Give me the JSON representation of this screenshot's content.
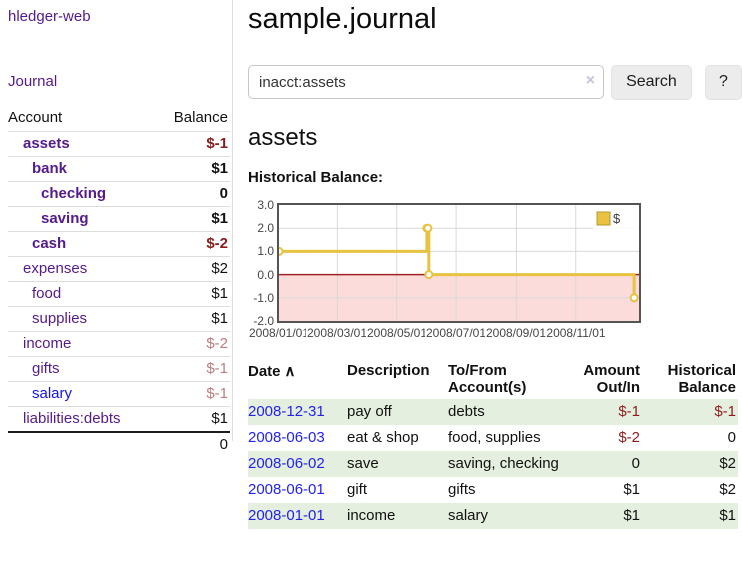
{
  "app": {
    "brand": "hledger-web",
    "nav_journal": "Journal"
  },
  "header": {
    "title": "sample.journal"
  },
  "search": {
    "query": "inacct:assets",
    "clear_icon": "×",
    "button_label": "Search",
    "help_label": "?"
  },
  "account_page": {
    "heading": "assets",
    "chart_label": "Historical Balance:"
  },
  "sidebar_table": {
    "headers": {
      "account": "Account",
      "balance": "Balance"
    },
    "rows": [
      {
        "name": "assets",
        "level": 1,
        "bold": true,
        "link": "purple",
        "value": "$-1",
        "value_style": "neg-strong"
      },
      {
        "name": "bank",
        "level": 2,
        "bold": true,
        "link": "purple",
        "value": "$1",
        "value_style": "pos-strong"
      },
      {
        "name": "checking",
        "level": 3,
        "bold": true,
        "link": "purple",
        "value": "0",
        "value_style": "pos-strong"
      },
      {
        "name": "saving",
        "level": 3,
        "bold": true,
        "link": "purple",
        "value": "$1",
        "value_style": "pos-strong"
      },
      {
        "name": "cash",
        "level": 2,
        "bold": true,
        "link": "purple",
        "value": "$-2",
        "value_style": "neg-strong"
      },
      {
        "name": "expenses",
        "level": 1,
        "bold": false,
        "link": "purple",
        "value": "$2",
        "value_style": "pos"
      },
      {
        "name": "food",
        "level": 2,
        "bold": false,
        "link": "purple",
        "value": "$1",
        "value_style": "pos"
      },
      {
        "name": "supplies",
        "level": 2,
        "bold": false,
        "link": "purple",
        "value": "$1",
        "value_style": "pos"
      },
      {
        "name": "income",
        "level": 1,
        "bold": false,
        "link": "purple",
        "value": "$-2",
        "value_style": "neg-faded"
      },
      {
        "name": "gifts",
        "level": 2,
        "bold": false,
        "link": "purple",
        "value": "$-1",
        "value_style": "neg-faded"
      },
      {
        "name": "salary",
        "level": 2,
        "bold": false,
        "link": "blue",
        "value": "$-1",
        "value_style": "neg-faded"
      },
      {
        "name": "liabilities:debts",
        "level": 1,
        "bold": false,
        "link": "purple",
        "value": "$1",
        "value_style": "pos"
      }
    ],
    "total": "0"
  },
  "chart_data": {
    "type": "line",
    "style": "step",
    "title": "Historical Balance",
    "series": [
      {
        "name": "$",
        "color": "#e8c240",
        "points": [
          [
            "2008-01-01",
            1
          ],
          [
            "2008-06-01",
            2
          ],
          [
            "2008-06-02",
            2
          ],
          [
            "2008-06-03",
            0
          ],
          [
            "2008-12-31",
            -1
          ]
        ]
      }
    ],
    "ylim": [
      -2,
      3
    ],
    "yticks": [
      "3.0",
      "2.0",
      "1.0",
      "0.0",
      "-1.0",
      "-2.0"
    ],
    "ytick_values": [
      3,
      2,
      1,
      0,
      -1,
      -2
    ],
    "xticks": [
      "2008/01/01",
      "2008/03/01",
      "2008/05/01",
      "2008/07/01",
      "2008/09/01",
      "2008/11/01"
    ],
    "legend": {
      "label": "$",
      "position": "top-right"
    },
    "grid": true,
    "colors": {
      "negative_region": "#fcdbdb",
      "zero_line": "#a32020",
      "gridline": "#d9d9d9",
      "border": "#545454",
      "marker_fill": "#ffffff"
    }
  },
  "register": {
    "headers": [
      {
        "label": "Date",
        "sort_icon": "∧",
        "align": "left"
      },
      {
        "label": "Description",
        "align": "left"
      },
      {
        "label": "To/From Account(s)",
        "align": "left"
      },
      {
        "label": "Amount Out/In",
        "align": "right"
      },
      {
        "label": "Historical Balance",
        "align": "right"
      }
    ],
    "rows": [
      {
        "date": "2008-12-31",
        "description": "pay off",
        "accounts": "debts",
        "amount": "$-1",
        "amount_neg": true,
        "balance": "$-1",
        "balance_neg": true,
        "shaded": true
      },
      {
        "date": "2008-06-03",
        "description": "eat & shop",
        "accounts": "food, supplies",
        "amount": "$-2",
        "amount_neg": true,
        "balance": "0",
        "balance_neg": false,
        "shaded": false
      },
      {
        "date": "2008-06-02",
        "description": "save",
        "accounts": "saving, checking",
        "amount": "0",
        "amount_neg": false,
        "balance": "$2",
        "balance_neg": false,
        "shaded": true
      },
      {
        "date": "2008-06-01",
        "description": "gift",
        "accounts": "gifts",
        "amount": "$1",
        "amount_neg": false,
        "balance": "$2",
        "balance_neg": false,
        "shaded": false
      },
      {
        "date": "2008-01-01",
        "description": "income",
        "accounts": "salary",
        "amount": "$1",
        "amount_neg": false,
        "balance": "$1",
        "balance_neg": false,
        "shaded": true
      }
    ]
  }
}
